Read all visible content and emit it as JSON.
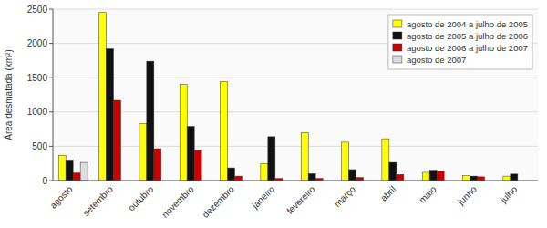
{
  "chart_data": {
    "type": "bar",
    "y_label": "Área desmatada (km²)",
    "categories": [
      "agosto",
      "setembro",
      "outubro",
      "novembro",
      "dezembro",
      "janeiro",
      "fevereiro",
      "março",
      "abril",
      "maio",
      "junho",
      "julho"
    ],
    "series": [
      {
        "name": "agosto de 2004 a julho de 2005",
        "color": "#FFFF00",
        "values": [
          370,
          2450,
          830,
          1400,
          1440,
          250,
          700,
          560,
          610,
          120,
          75,
          65
        ]
      },
      {
        "name": "agosto de 2005 a julho de 2006",
        "color": "#111111",
        "values": [
          300,
          1920,
          1740,
          790,
          185,
          640,
          100,
          160,
          265,
          150,
          65,
          95
        ]
      },
      {
        "name": "agosto de 2006 a julho de 2007",
        "color": "#CC0000",
        "values": [
          110,
          1170,
          465,
          445,
          65,
          30,
          30,
          45,
          90,
          135,
          55,
          0
        ]
      },
      {
        "name": "agosto de 2007",
        "color": "#DDDDDD",
        "values": [
          265,
          0,
          0,
          0,
          0,
          0,
          0,
          0,
          0,
          0,
          0,
          0
        ]
      }
    ],
    "ylim": [
      0,
      2500
    ],
    "yticks": [
      0,
      500,
      1000,
      1500,
      2000,
      2500
    ],
    "grid": true,
    "legend": "upper right"
  }
}
